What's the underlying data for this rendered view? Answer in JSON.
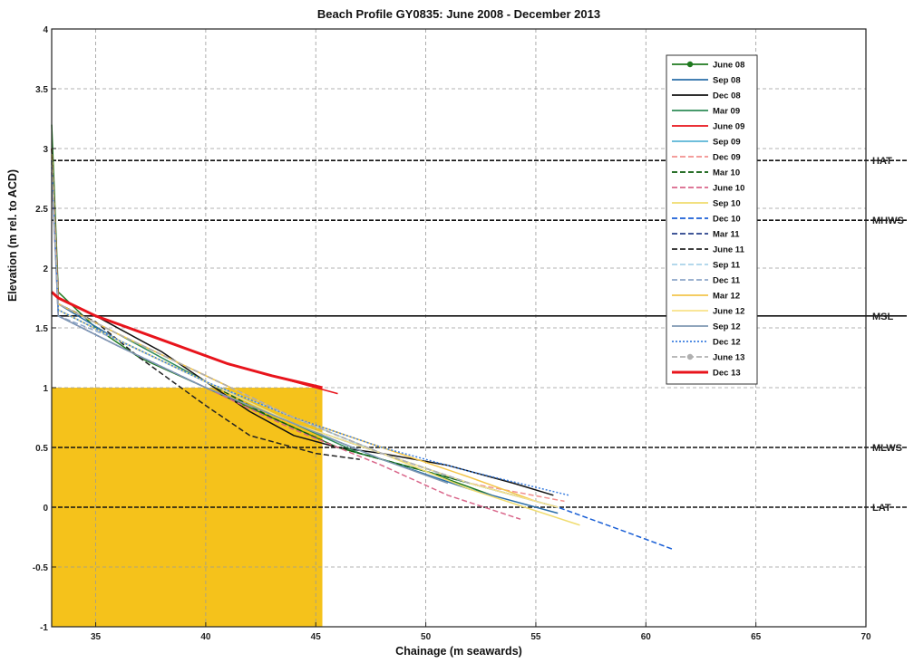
{
  "chart_data": {
    "type": "line",
    "title": "Beach Profile GY0835: June 2008 - December 2013",
    "xlabel": "Chainage (m seawards)",
    "ylabel": "Elevation (m rel. to ACD)",
    "xlim": [
      33,
      70
    ],
    "ylim": [
      -1,
      4
    ],
    "xticks": [
      35,
      40,
      45,
      50,
      55,
      60,
      65,
      70
    ],
    "yticks": [
      -1,
      -0.5,
      0,
      0.5,
      1,
      1.5,
      2,
      2.5,
      3,
      3.5,
      4
    ],
    "grid": true,
    "legend_position": "top-right",
    "reference_lines": [
      {
        "label": "HAT",
        "y": 2.9
      },
      {
        "label": "MHWS",
        "y": 2.4
      },
      {
        "label": "MSL",
        "y": 1.6
      },
      {
        "label": "MLWS",
        "y": 0.5
      },
      {
        "label": "LAT",
        "y": 0
      }
    ],
    "fill_area": {
      "x": [
        33,
        45.3
      ],
      "y_top": [
        1.0,
        1.0
      ],
      "color": "#f5c21b"
    },
    "series": [
      {
        "name": "June 08",
        "color": "#1f7a1f",
        "dash": "solid",
        "marker": true,
        "x": [
          33,
          33.3,
          35,
          37,
          40,
          43,
          46,
          50,
          53
        ],
        "y": [
          3.2,
          1.8,
          1.5,
          1.25,
          1.0,
          0.75,
          0.5,
          0.3,
          0.1
        ]
      },
      {
        "name": "Sep 08",
        "color": "#2a6ea8",
        "dash": "solid",
        "x": [
          33,
          33.3,
          36,
          40,
          44,
          48,
          52,
          56
        ],
        "y": [
          2.9,
          1.7,
          1.4,
          1.05,
          0.7,
          0.4,
          0.15,
          -0.05
        ]
      },
      {
        "name": "Dec 08",
        "color": "#111111",
        "dash": "solid",
        "x": [
          33,
          33.3,
          35,
          38,
          40,
          42,
          44,
          46,
          48,
          51,
          54,
          55.8
        ],
        "y": [
          3.0,
          1.75,
          1.6,
          1.3,
          1.05,
          0.8,
          0.6,
          0.5,
          0.45,
          0.35,
          0.2,
          0.1
        ]
      },
      {
        "name": "Mar 09",
        "color": "#2e8b57",
        "dash": "solid",
        "x": [
          33,
          33.3,
          36,
          40,
          44,
          47,
          50,
          54
        ],
        "y": [
          2.9,
          1.7,
          1.45,
          1.05,
          0.7,
          0.45,
          0.3,
          0.1
        ]
      },
      {
        "name": "June 09",
        "color": "#e8141c",
        "dash": "solid",
        "x": [
          33,
          33.3,
          35,
          38,
          41,
          44,
          46
        ],
        "y": [
          3.0,
          1.75,
          1.6,
          1.4,
          1.2,
          1.05,
          0.95
        ]
      },
      {
        "name": "Sep 09",
        "color": "#5ab4d6",
        "dash": "solid",
        "x": [
          33,
          33.3,
          36,
          40,
          44,
          48,
          52,
          56
        ],
        "y": [
          2.8,
          1.65,
          1.4,
          1.05,
          0.7,
          0.45,
          0.2,
          0.0
        ]
      },
      {
        "name": "Dec 09",
        "color": "#f2908f",
        "dash": "dashed",
        "x": [
          33,
          33.3,
          36,
          40,
          44,
          48,
          52,
          56.3
        ],
        "y": [
          2.9,
          1.7,
          1.45,
          1.1,
          0.75,
          0.45,
          0.2,
          0.05
        ]
      },
      {
        "name": "Mar 10",
        "color": "#0d5c0d",
        "dash": "dashed",
        "x": [
          33,
          33.3,
          36,
          40,
          43,
          46,
          50,
          54
        ],
        "y": [
          2.9,
          1.65,
          1.4,
          1.05,
          0.75,
          0.5,
          0.3,
          0.1
        ]
      },
      {
        "name": "June 10",
        "color": "#d9668a",
        "dash": "dashed",
        "x": [
          33,
          33.3,
          36,
          40,
          44,
          48,
          51,
          54.3
        ],
        "y": [
          2.8,
          1.6,
          1.35,
          1.0,
          0.65,
          0.35,
          0.1,
          -0.1
        ]
      },
      {
        "name": "Sep 10",
        "color": "#f0dc6e",
        "dash": "solid",
        "x": [
          33,
          33.3,
          36,
          40,
          44,
          48,
          52,
          57
        ],
        "y": [
          3.0,
          1.7,
          1.45,
          1.1,
          0.75,
          0.45,
          0.15,
          -0.15
        ]
      },
      {
        "name": "Dec 10",
        "color": "#1a5fd6",
        "dash": "dashed",
        "x": [
          33,
          33.3,
          36,
          40,
          44,
          48,
          52,
          56,
          59,
          61.2
        ],
        "y": [
          2.9,
          1.6,
          1.35,
          1.0,
          0.7,
          0.45,
          0.2,
          0.0,
          -0.2,
          -0.35
        ]
      },
      {
        "name": "Mar 11",
        "color": "#27408b",
        "dash": "dashed",
        "x": [
          33,
          33.3,
          36,
          40,
          44,
          48,
          52
        ],
        "y": [
          2.9,
          1.7,
          1.45,
          1.1,
          0.75,
          0.45,
          0.2
        ]
      },
      {
        "name": "June 11",
        "color": "#222222",
        "dash": "dashed",
        "x": [
          33,
          33.3,
          35,
          37,
          40,
          42,
          45,
          47
        ],
        "y": [
          3.0,
          1.7,
          1.55,
          1.25,
          0.85,
          0.6,
          0.45,
          0.4
        ]
      },
      {
        "name": "Sep 11",
        "color": "#a9d3ea",
        "dash": "dashed",
        "x": [
          33,
          33.3,
          36,
          40,
          44,
          48,
          52,
          56
        ],
        "y": [
          2.85,
          1.65,
          1.4,
          1.05,
          0.75,
          0.45,
          0.2,
          0.0
        ]
      },
      {
        "name": "Dec 11",
        "color": "#8fa7c9",
        "dash": "dashed",
        "x": [
          33,
          33.3,
          36,
          40,
          44,
          48,
          52,
          55
        ],
        "y": [
          2.9,
          1.6,
          1.4,
          1.05,
          0.7,
          0.45,
          0.2,
          0.05
        ]
      },
      {
        "name": "Mar 12",
        "color": "#f3c54b",
        "dash": "solid",
        "x": [
          33,
          33.3,
          36,
          40,
          44,
          48,
          52,
          55
        ],
        "y": [
          2.95,
          1.7,
          1.45,
          1.1,
          0.75,
          0.5,
          0.25,
          0.05
        ]
      },
      {
        "name": "June 12",
        "color": "#f8e28a",
        "dash": "solid",
        "x": [
          33,
          33.3,
          36,
          40,
          44,
          48,
          52,
          56
        ],
        "y": [
          2.9,
          1.65,
          1.4,
          1.05,
          0.7,
          0.45,
          0.2,
          0.0
        ]
      },
      {
        "name": "Sep 12",
        "color": "#7f98b2",
        "dash": "solid",
        "x": [
          33,
          33.3,
          36,
          40,
          44,
          48,
          51
        ],
        "y": [
          2.85,
          1.6,
          1.35,
          1.0,
          0.7,
          0.4,
          0.2
        ]
      },
      {
        "name": "Dec 12",
        "color": "#3c7fe0",
        "dash": "dotted",
        "x": [
          33,
          33.3,
          36,
          40,
          44,
          48,
          52,
          56.5
        ],
        "y": [
          2.9,
          1.65,
          1.4,
          1.05,
          0.75,
          0.5,
          0.3,
          0.1
        ]
      },
      {
        "name": "June 13",
        "color": "#b0b0b0",
        "dash": "dashed",
        "marker": true,
        "x": [
          33,
          33.3,
          36,
          40,
          44,
          48,
          52
        ],
        "y": [
          2.9,
          1.7,
          1.45,
          1.1,
          0.75,
          0.45,
          0.2
        ]
      },
      {
        "name": "Dec 13",
        "color": "#e8141c",
        "dash": "solid",
        "x": [
          33,
          33.3,
          35,
          38,
          41,
          43,
          45.3
        ],
        "y": [
          1.8,
          1.75,
          1.6,
          1.4,
          1.2,
          1.1,
          1.0
        ]
      }
    ]
  }
}
